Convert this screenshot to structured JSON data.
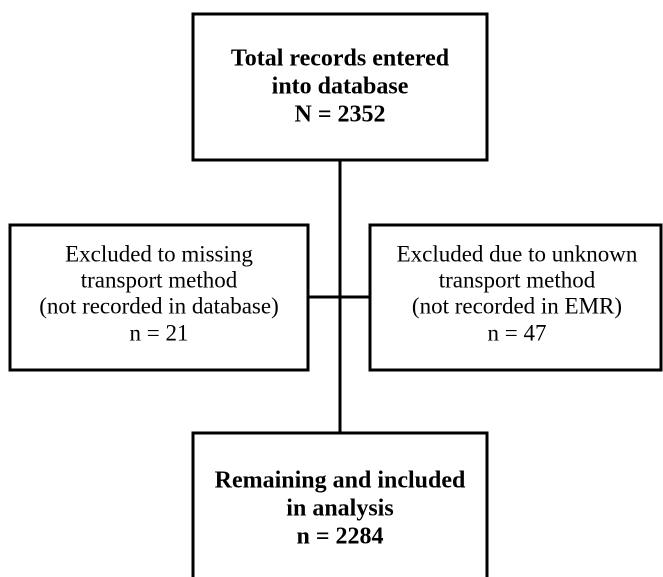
{
  "nodes": [
    {
      "lines": [
        "Total records entered",
        "into database",
        "N = 2352"
      ]
    },
    {
      "lines": [
        "Excluded to missing",
        "transport method",
        "(not recorded in database)",
        "n = 21"
      ]
    },
    {
      "lines": [
        "Excluded due to unknown",
        "transport method",
        "(not recorded in EMR)",
        "n = 47"
      ]
    },
    {
      "lines": [
        "Remaining and included",
        "in analysis",
        "n = 2284"
      ]
    }
  ]
}
